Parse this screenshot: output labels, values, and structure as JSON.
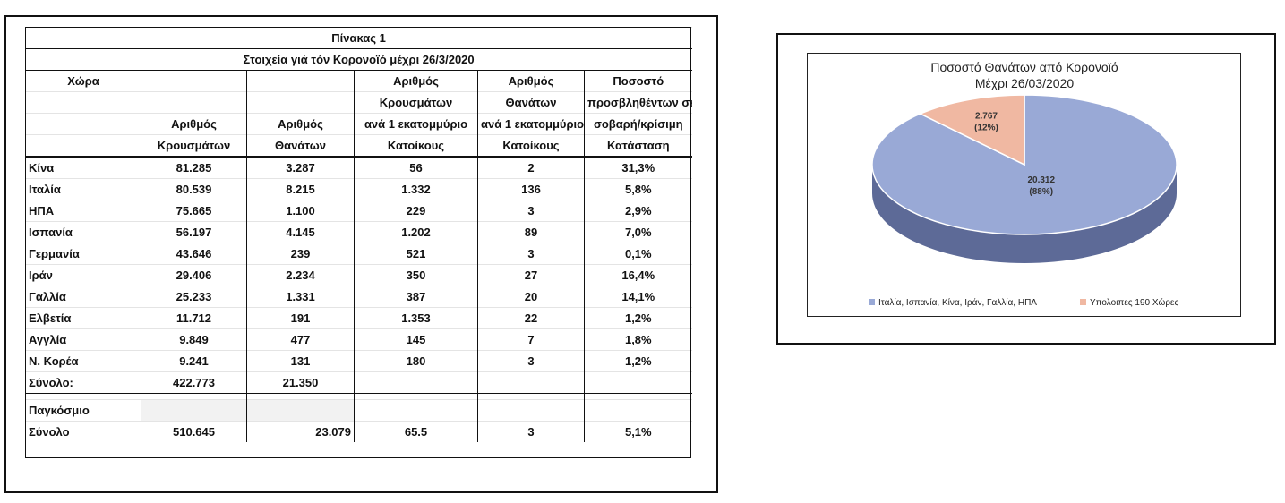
{
  "table": {
    "title": "Πίνακας 1",
    "subtitle": "Στοιχεία γιά τόν Κορονοϊό μέχρι 26/3/2020",
    "header_rows": [
      [
        "Χώρα",
        "",
        "",
        "Αριθμός",
        "Αριθμός",
        "Ποσοστό"
      ],
      [
        "",
        "",
        "",
        "Κρουσμάτων",
        "Θανάτων",
        "προσβληθέντων σε"
      ],
      [
        "",
        "Αριθμός",
        "Αριθμός",
        "ανά 1 εκατομμύριο",
        "ανά 1 εκατομμύριο",
        "σοβαρή/κρίσιμη"
      ],
      [
        "",
        "Κρουσμάτων",
        "Θανάτων",
        "Κατοίκους",
        "Κατοίκους",
        "Κατάσταση"
      ]
    ],
    "rows": [
      [
        "Κίνα",
        "81.285",
        "3.287",
        "56",
        "2",
        "31,3%"
      ],
      [
        "Ιταλία",
        "80.539",
        "8.215",
        "1.332",
        "136",
        "5,8%"
      ],
      [
        "ΗΠΑ",
        "75.665",
        "1.100",
        "229",
        "3",
        "2,9%"
      ],
      [
        "Ισπανία",
        "56.197",
        "4.145",
        "1.202",
        "89",
        "7,0%"
      ],
      [
        "Γερμανία",
        "43.646",
        "239",
        "521",
        "3",
        "0,1%"
      ],
      [
        "Ιράν",
        "29.406",
        "2.234",
        "350",
        "27",
        "16,4%"
      ],
      [
        "Γαλλία",
        "25.233",
        "1.331",
        "387",
        "20",
        "14,1%"
      ],
      [
        "Ελβετία",
        "11.712",
        "191",
        "1.353",
        "22",
        "1,2%"
      ],
      [
        "Αγγλία",
        "9.849",
        "477",
        "145",
        "7",
        "1,8%"
      ],
      [
        "Ν. Κορέα",
        "9.241",
        "131",
        "180",
        "3",
        "1,2%"
      ]
    ],
    "total_row": [
      "Σύνολο:",
      "422.773",
      "21.350",
      "",
      "",
      ""
    ],
    "world_label": "Παγκόσμιο",
    "world_row": [
      "Σύνολο",
      "510.645",
      "23.079",
      "65.5",
      "3",
      "5,1%"
    ]
  },
  "chart_data": {
    "type": "pie",
    "title_lines": [
      "Ποσοστό Θανάτων από Κορονοϊό",
      "Μέχρι 26/03/2020"
    ],
    "slices": [
      {
        "name": "Ιταλία, Ισπανία, Κίνα, Ιράν, Γαλλία, ΗΠΑ",
        "value": 20312,
        "value_label": "20.312",
        "percent_label": "(88%)",
        "color": "#99a9d6",
        "side_color": "#5d6a97"
      },
      {
        "name": "Υπολοιπες 190 Χώρες",
        "value": 2767,
        "value_label": "2.767",
        "percent_label": "(12%)",
        "color": "#f0b8a2",
        "side_color": "#b47e69"
      }
    ],
    "legend_position": "bottom",
    "style": "3d"
  }
}
